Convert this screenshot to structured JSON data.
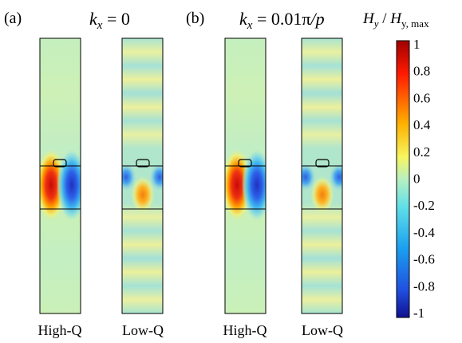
{
  "panels": [
    {
      "label": "(a)",
      "title_var": "k",
      "title_sub": "x",
      "title_rest": " = 0",
      "title_pi": "",
      "title_tail": ""
    },
    {
      "label": "(b)",
      "title_var": "k",
      "title_sub": "x",
      "title_rest": " = 0.01",
      "title_pi": "π",
      "title_tail": "/p"
    }
  ],
  "column_labels": [
    "High-Q",
    "Low-Q",
    "High-Q",
    "Low-Q"
  ],
  "colorbar": {
    "title_h": "H",
    "title_sub1": "y",
    "title_slash": " / ",
    "title_h2": "H",
    "title_sub2": "y, max",
    "ticks": [
      "1",
      "0.8",
      "0.6",
      "0.4",
      "0.2",
      "0",
      "-0.2",
      "-0.4",
      "-0.6",
      "-0.8",
      "-1"
    ],
    "tick_values": [
      1,
      0.8,
      0.6,
      0.4,
      0.2,
      0,
      -0.2,
      -0.4,
      -0.6,
      -0.8,
      -1
    ],
    "range": [
      -1,
      1
    ],
    "colormap": "jet"
  },
  "colors": {
    "background_field": "#c8f0b8",
    "stripe_yellow": "#eef0a0",
    "stripe_cyan": "#9fe0d8",
    "positive_peak": "#d41a14",
    "negative_peak": "#2c3fc8"
  }
}
